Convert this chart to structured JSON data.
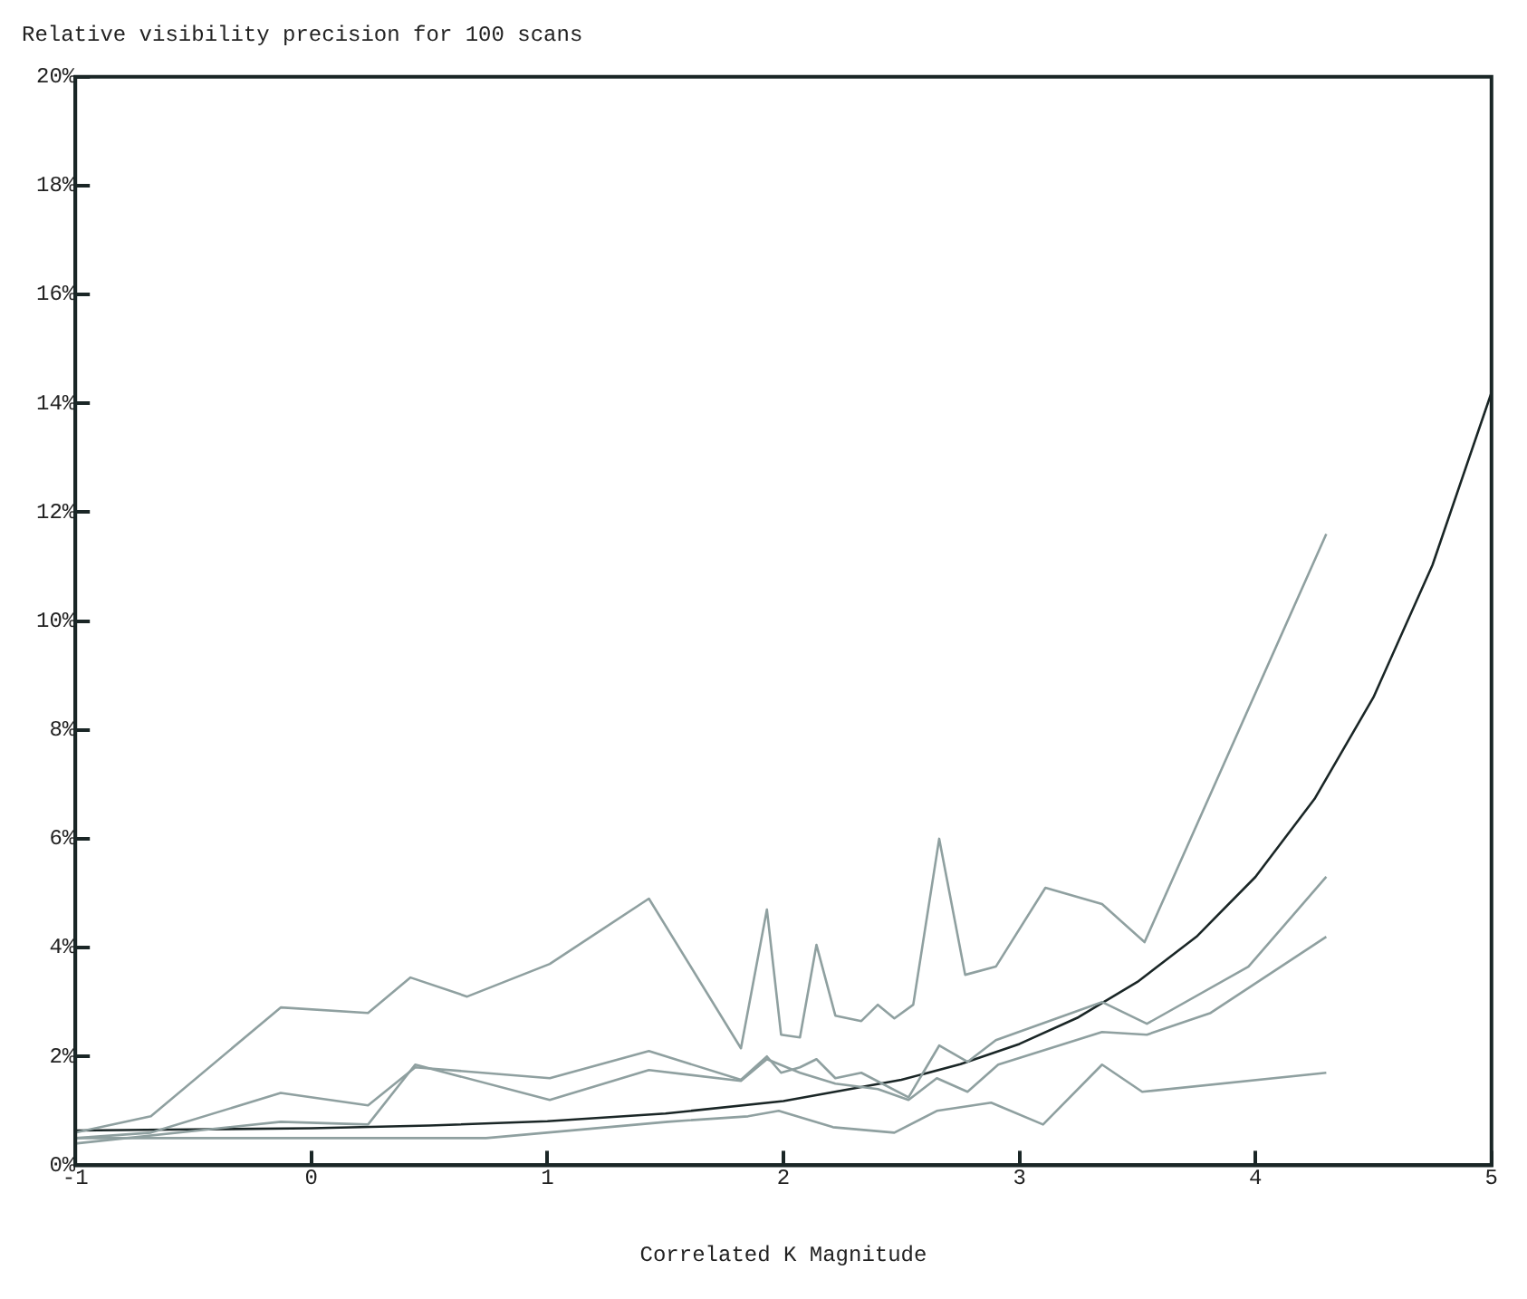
{
  "chart_data": {
    "type": "line",
    "title": "Relative visibility precision for 100 scans",
    "xlabel": "Correlated K Magnitude",
    "xlim": [
      -1,
      5
    ],
    "xticks": [
      -1,
      0,
      1,
      2,
      3,
      4,
      5
    ],
    "ylim": [
      0,
      20
    ],
    "yticks": [
      {
        "value": 0,
        "label": "0%"
      },
      {
        "value": 2,
        "label": "2%"
      },
      {
        "value": 4,
        "label": "4%"
      },
      {
        "value": 6,
        "label": "6%"
      },
      {
        "value": 8,
        "label": "8%"
      },
      {
        "value": 10,
        "label": "10%"
      },
      {
        "value": 12,
        "label": "12%"
      },
      {
        "value": 14,
        "label": "14%"
      },
      {
        "value": 16,
        "label": "16%"
      },
      {
        "value": 18,
        "label": "18%"
      },
      {
        "value": 20,
        "label": "20%"
      }
    ],
    "grid": false,
    "legend": false,
    "marker": "none",
    "line_style": "solid",
    "series": [
      {
        "color": "#8fa0a0",
        "x": [
          -1,
          -0.68,
          -0.13,
          0.24,
          0.42,
          0.66,
          1.01,
          1.43,
          1.82,
          1.93,
          1.99,
          2.07,
          2.14,
          2.22,
          2.33,
          2.4,
          2.47,
          2.55,
          2.66,
          2.77,
          2.9,
          3.11,
          3.35,
          3.53,
          4.3
        ],
        "values": [
          0.6,
          0.9,
          2.9,
          2.8,
          3.45,
          3.1,
          3.7,
          4.9,
          2.15,
          4.7,
          2.4,
          2.35,
          4.05,
          2.75,
          2.65,
          2.95,
          2.7,
          2.95,
          6.0,
          3.5,
          3.65,
          5.1,
          4.8,
          4.1,
          11.6
        ]
      },
      {
        "color": "#8fa0a0",
        "x": [
          -1,
          -0.68,
          -0.13,
          0.24,
          0.44,
          1.01,
          1.43,
          1.82,
          1.93,
          1.99,
          2.07,
          2.14,
          2.22,
          2.33,
          2.53,
          2.66,
          2.78,
          2.9,
          3.35,
          3.54,
          3.97,
          4.3
        ],
        "values": [
          0.5,
          0.6,
          1.33,
          1.1,
          1.8,
          1.6,
          2.1,
          1.57,
          2.0,
          1.7,
          1.8,
          1.95,
          1.6,
          1.7,
          1.25,
          2.2,
          1.9,
          2.3,
          3.0,
          2.6,
          3.65,
          5.3
        ]
      },
      {
        "color": "#8fa0a0",
        "x": [
          -1,
          -0.13,
          0.24,
          0.44,
          1.01,
          1.43,
          1.82,
          1.93,
          2.07,
          2.22,
          2.4,
          2.53,
          2.65,
          2.78,
          2.91,
          3.35,
          3.54,
          3.81,
          4.3
        ],
        "values": [
          0.4,
          0.8,
          0.75,
          1.85,
          1.2,
          1.75,
          1.55,
          1.95,
          1.7,
          1.5,
          1.4,
          1.2,
          1.6,
          1.35,
          1.85,
          2.45,
          2.4,
          2.8,
          4.2
        ]
      },
      {
        "color": "#8fa0a0",
        "x": [
          -1,
          0.24,
          0.74,
          1.51,
          1.85,
          1.98,
          2.21,
          2.47,
          2.65,
          2.88,
          3.1,
          3.35,
          3.52,
          4.3
        ],
        "values": [
          0.5,
          0.5,
          0.5,
          0.8,
          0.9,
          1.0,
          0.7,
          0.6,
          1.0,
          1.15,
          0.75,
          1.85,
          1.35,
          1.7
        ]
      },
      {
        "color": "#1a2626",
        "x": [
          -1,
          -0.5,
          0,
          0.5,
          1,
          1.5,
          2,
          2.5,
          2.75,
          3,
          3.25,
          3.5,
          3.75,
          4,
          4.25,
          4.5,
          4.75,
          5
        ],
        "values": [
          0.64,
          0.66,
          0.68,
          0.73,
          0.81,
          0.95,
          1.18,
          1.57,
          1.86,
          2.23,
          2.72,
          3.37,
          4.2,
          5.3,
          6.73,
          8.6,
          11.03,
          14.2
        ]
      }
    ]
  }
}
